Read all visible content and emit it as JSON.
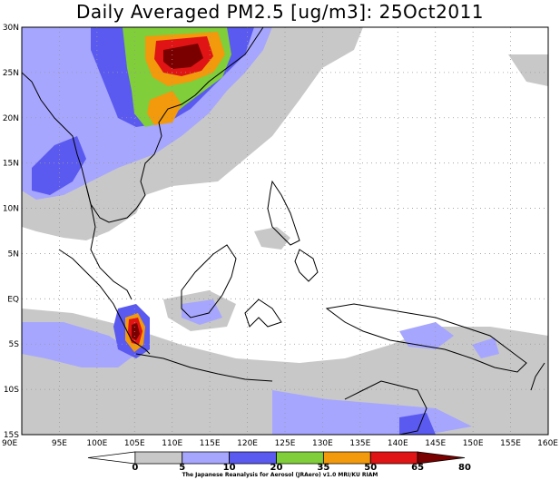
{
  "title": "Daily Averaged PM2.5 [ug/m3]: 25Oct2011",
  "credit": "The Japanese Reanalysis for Aerosol (JRAero) v1.0 MRI/KU RIAM",
  "lon_labels": [
    "90E",
    "95E",
    "100E",
    "105E",
    "110E",
    "115E",
    "120E",
    "125E",
    "130E",
    "135E",
    "140E",
    "145E",
    "150E",
    "155E",
    "160E"
  ],
  "lat_labels": [
    "30N",
    "25N",
    "20N",
    "15N",
    "10N",
    "5N",
    "EQ",
    "5S",
    "10S",
    "15S"
  ],
  "colorbar": {
    "levels": [
      "0",
      "5",
      "10",
      "20",
      "35",
      "50",
      "65",
      "80"
    ],
    "colors": [
      "#ffffff",
      "#c8c8c8",
      "#a6a6ff",
      "#5a5af0",
      "#7fce3a",
      "#f29a0c",
      "#e01414",
      "#7a0000"
    ]
  },
  "chart_data": {
    "type": "heatmap",
    "title": "Daily Averaged PM2.5 [ug/m3]: 25Oct2011",
    "xlim": [
      90,
      160
    ],
    "ylim": [
      -15,
      30
    ],
    "x_ticks": [
      "90E",
      "95E",
      "100E",
      "105E",
      "110E",
      "115E",
      "120E",
      "125E",
      "130E",
      "135E",
      "140E",
      "145E",
      "150E",
      "155E",
      "160E"
    ],
    "y_ticks": [
      "30N",
      "25N",
      "20N",
      "15N",
      "10N",
      "5N",
      "EQ",
      "5S",
      "10S",
      "15S"
    ],
    "grid": true,
    "colorbar_levels": [
      0,
      5,
      10,
      20,
      35,
      50,
      65,
      80
    ],
    "maxima": [
      {
        "lon": 108,
        "lat": 27,
        "value": 80
      },
      {
        "lon": 104.5,
        "lat": -3.3,
        "value": 80
      }
    ]
  }
}
